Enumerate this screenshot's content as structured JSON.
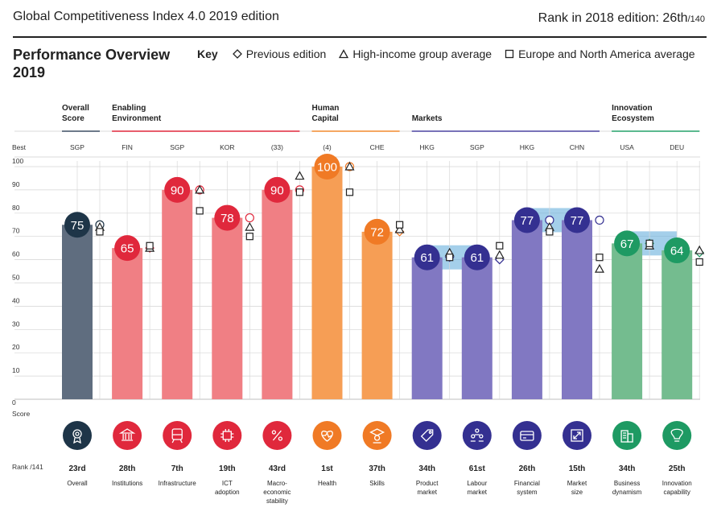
{
  "header": {
    "title": "Global Competitiveness Index 4.0 2019 edition",
    "rank_label": "Rank in 2018 edition: 26th",
    "rank_total": "/140"
  },
  "overview": {
    "title_line1": "Performance Overview",
    "title_line2": "2019"
  },
  "key": {
    "label": "Key",
    "previous": "Previous edition",
    "high_income": "High-income group average",
    "europe_na": "Europe and North America average"
  },
  "row_labels": {
    "best": "Best",
    "score_zero": "0",
    "score": "Score",
    "rank": "Rank /141"
  },
  "chart_data": {
    "type": "bar",
    "title": "Performance Overview 2019",
    "ylabel": "Score",
    "ylim": [
      0,
      100
    ],
    "yticks": [
      0,
      10,
      20,
      30,
      40,
      50,
      60,
      70,
      80,
      90,
      100
    ],
    "groups": [
      {
        "name": "Overall\nScore",
        "color": "#3d4f63",
        "start": 0,
        "end": 0
      },
      {
        "name": "Enabling\nEnvironment",
        "color": "#e0283c",
        "start": 1,
        "end": 4
      },
      {
        "name": "Human\nCapital",
        "color": "#f28a2e",
        "start": 5,
        "end": 6
      },
      {
        "name": "Markets",
        "color": "#4b44a0",
        "start": 7,
        "end": 10
      },
      {
        "name": "Innovation\nEcosystem",
        "color": "#25a26a",
        "start": 11,
        "end": 12
      }
    ],
    "categories": [
      "Overall",
      "Institutions",
      "Infrastructure",
      "ICT\nadoption",
      "Macro-\neconomic\nstability",
      "Health",
      "Skills",
      "Product\nmarket",
      "Labour\nmarket",
      "Financial\nsystem",
      "Market\nsize",
      "Business\ndynamism",
      "Innovation\ncapability"
    ],
    "best": [
      "SGP",
      "FIN",
      "SGP",
      "KOR",
      "(33)",
      "(4)",
      "CHE",
      "HKG",
      "SGP",
      "HKG",
      "CHN",
      "USA",
      "DEU"
    ],
    "values": [
      75,
      65,
      90,
      78,
      90,
      100,
      72,
      61,
      61,
      77,
      77,
      67,
      64
    ],
    "previous": [
      75,
      65,
      90,
      78,
      90,
      100,
      72,
      61,
      60,
      77,
      77,
      67,
      63
    ],
    "high_income": [
      74,
      65,
      90,
      74,
      96,
      100,
      73,
      63,
      62,
      74,
      56,
      66,
      64
    ],
    "europe_na": [
      72,
      66,
      81,
      70,
      89,
      89,
      75,
      61,
      66,
      72,
      61,
      67,
      59
    ],
    "ranks": [
      "23rd",
      "28th",
      "7th",
      "19th",
      "43rd",
      "1st",
      "37th",
      "34th",
      "61st",
      "26th",
      "15th",
      "34th",
      "25th"
    ],
    "bar_colors": [
      "#5f6d7f",
      "#f07f84",
      "#f07f84",
      "#f07f84",
      "#f07f84",
      "#f69e55",
      "#f69e55",
      "#8178c2",
      "#8178c2",
      "#8178c2",
      "#8178c2",
      "#74bc8f",
      "#74bc8f"
    ],
    "circle_colors": [
      "#1e3548",
      "#e0283c",
      "#e0283c",
      "#e0283c",
      "#e0283c",
      "#f07a25",
      "#f07a25",
      "#343091",
      "#343091",
      "#343091",
      "#343091",
      "#1e9a63",
      "#1e9a63"
    ],
    "icons": [
      "medal-icon",
      "institution-icon",
      "train-icon",
      "chip-icon",
      "percent-icon",
      "heart-icon",
      "graduate-icon",
      "tag-icon",
      "people-icon",
      "card-icon",
      "resize-icon",
      "building-icon",
      "bulb-icon"
    ]
  }
}
